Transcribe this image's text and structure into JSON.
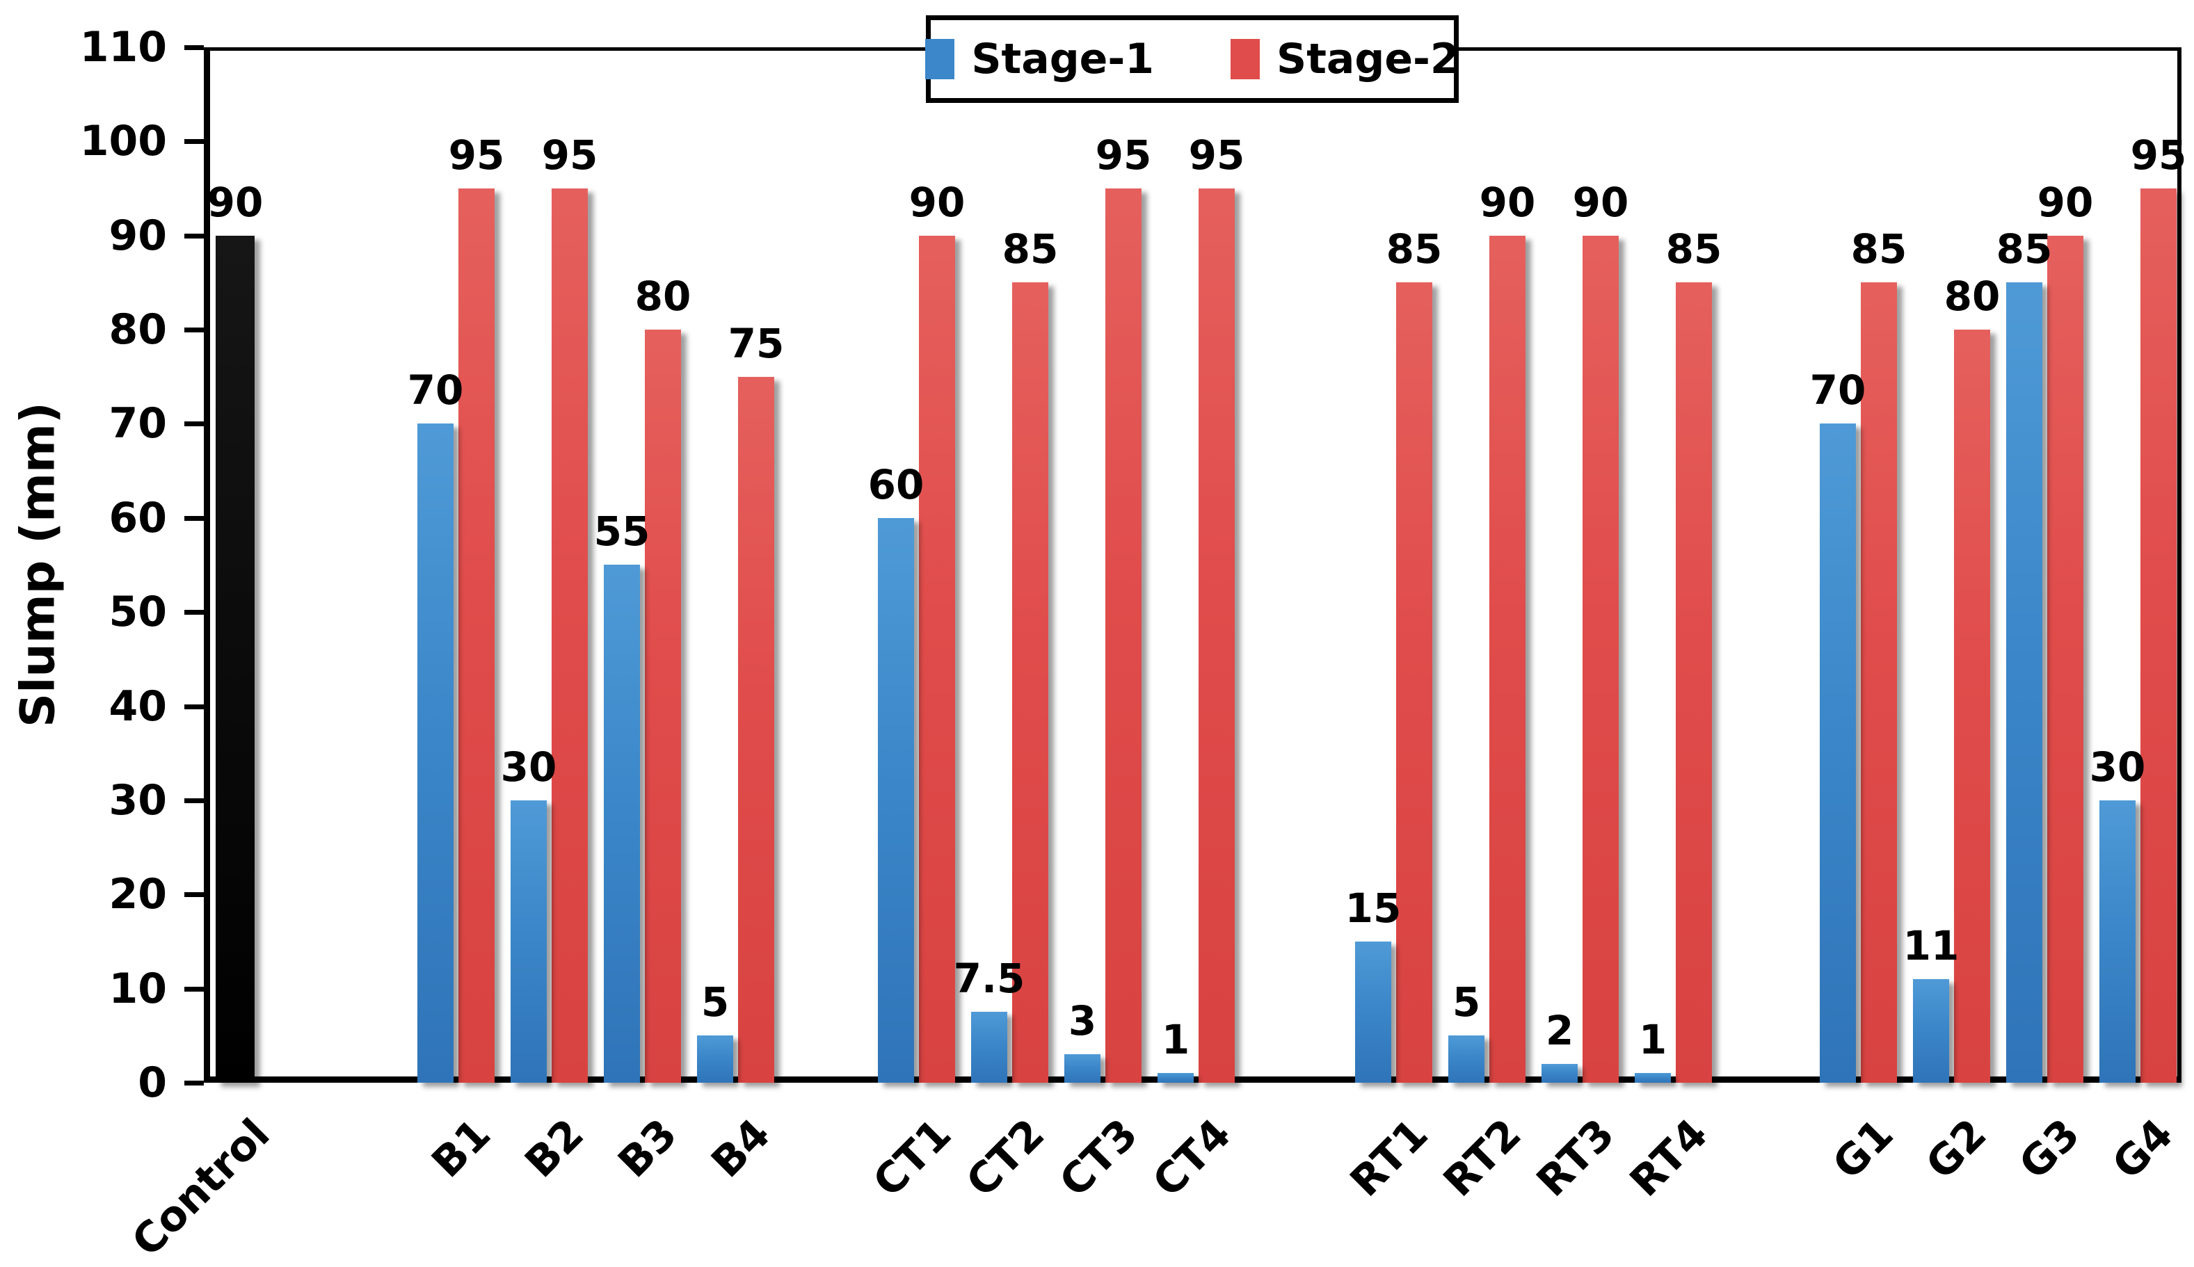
{
  "chart_data": {
    "type": "bar",
    "title": "",
    "ylabel": "Slump (mm)",
    "xlabel": "",
    "ylim": [
      0,
      110
    ],
    "ytick_step": 10,
    "yticks": [
      0,
      10,
      20,
      30,
      40,
      50,
      60,
      70,
      80,
      90,
      100,
      110
    ],
    "grid": false,
    "legend_position": "top-center",
    "legend": [
      "Stage-1",
      "Stage-2"
    ],
    "categories": [
      "Control",
      "B1",
      "B2",
      "B3",
      "B4",
      "CT1",
      "CT2",
      "CT3",
      "CT4",
      "RT1",
      "RT2",
      "RT3",
      "RT4",
      "G1",
      "G2",
      "G3",
      "G4"
    ],
    "groups": [
      [
        0
      ],
      [
        1,
        2,
        3,
        4
      ],
      [
        5,
        6,
        7,
        8
      ],
      [
        9,
        10,
        11,
        12
      ],
      [
        13,
        14,
        15,
        16
      ]
    ],
    "control": {
      "category": "Control",
      "value": 90,
      "color": "#0a0a0a"
    },
    "series": [
      {
        "name": "Stage-1",
        "color": "#3b87c9",
        "values": [
          null,
          70,
          30,
          55,
          5,
          60,
          7.5,
          3,
          1,
          15,
          5,
          2,
          1,
          70,
          11,
          85,
          30
        ]
      },
      {
        "name": "Stage-2",
        "color": "#e04b4b",
        "values": [
          null,
          95,
          95,
          80,
          75,
          90,
          85,
          95,
          95,
          85,
          90,
          90,
          85,
          85,
          80,
          90,
          95
        ]
      }
    ],
    "colors": {
      "stage1": "#3b87c9",
      "stage2": "#e04b4b",
      "control": "#0a0a0a",
      "shadow": "#a8a8a8",
      "axis": "#000000",
      "background": "#ffffff"
    }
  }
}
